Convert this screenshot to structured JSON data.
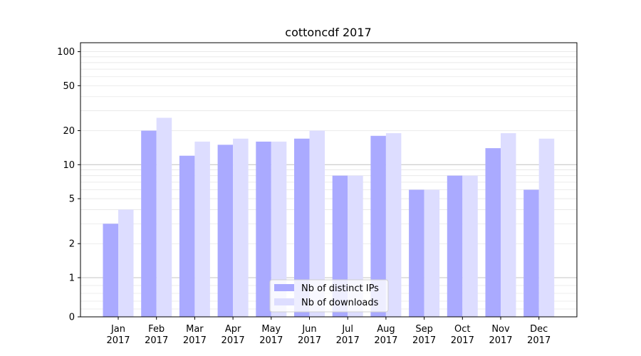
{
  "chart_data": {
    "type": "bar",
    "title": "cottoncdf 2017",
    "xlabel": "",
    "ylabel": "",
    "yscale": "symlog",
    "ylim": [
      0,
      120
    ],
    "yticks": [
      0,
      1,
      2,
      5,
      10,
      20,
      50,
      100
    ],
    "grid": "y-minor-and-major",
    "legend_position": "lower-center",
    "categories": [
      {
        "month": "Jan",
        "year": "2017"
      },
      {
        "month": "Feb",
        "year": "2017"
      },
      {
        "month": "Mar",
        "year": "2017"
      },
      {
        "month": "Apr",
        "year": "2017"
      },
      {
        "month": "May",
        "year": "2017"
      },
      {
        "month": "Jun",
        "year": "2017"
      },
      {
        "month": "Jul",
        "year": "2017"
      },
      {
        "month": "Aug",
        "year": "2017"
      },
      {
        "month": "Sep",
        "year": "2017"
      },
      {
        "month": "Oct",
        "year": "2017"
      },
      {
        "month": "Nov",
        "year": "2017"
      },
      {
        "month": "Dec",
        "year": "2017"
      }
    ],
    "series": [
      {
        "name": "Nb of distinct IPs",
        "color": "#aaaaff",
        "values": [
          3,
          20,
          12,
          15,
          16,
          17,
          8,
          18,
          6,
          8,
          14,
          6
        ]
      },
      {
        "name": "Nb of downloads",
        "color": "#ddddff",
        "values": [
          4,
          26,
          16,
          17,
          16,
          20,
          8,
          19,
          6,
          8,
          19,
          17
        ]
      }
    ]
  }
}
